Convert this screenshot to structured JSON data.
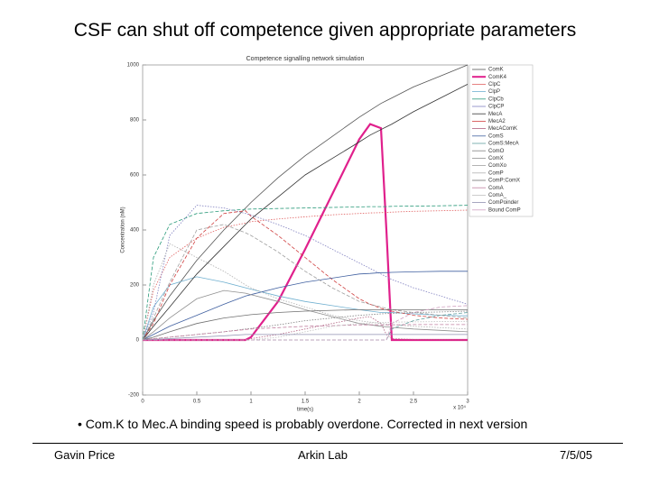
{
  "slide_title": "CSF can shut off competence given appropriate parameters",
  "bullet": "Com.K to Mec.A binding speed is probably overdone. Corrected in next version",
  "footer": {
    "left": "Gavin Price",
    "center": "Arkin Lab",
    "right": "7/5/05"
  },
  "chart_data": {
    "type": "line",
    "title": "Competence signalling network simulation",
    "xlabel": "time(s)",
    "ylabel": "Concentration (nM)",
    "x_multiplier": "x 10⁴",
    "x": [
      0,
      0.1,
      0.25,
      0.5,
      0.75,
      0.95,
      1,
      1.25,
      1.5,
      1.75,
      2,
      2.1,
      2.2,
      2.25,
      2.3,
      2.5,
      2.75,
      3
    ],
    "xlim": [
      0,
      3
    ],
    "xticks": [
      0,
      0.5,
      1,
      1.5,
      2,
      2.5,
      3
    ],
    "ylim": [
      -200,
      1000
    ],
    "yticks": [
      -200,
      0,
      200,
      400,
      600,
      800,
      1000
    ],
    "legend": "right",
    "series": [
      {
        "name": "ComK",
        "color": "#555555",
        "values": [
          0,
          70,
          160,
          290,
          400,
          480,
          500,
          590,
          670,
          740,
          810,
          835,
          860,
          870,
          880,
          920,
          960,
          1000
        ]
      },
      {
        "name": "ComK4",
        "color": "#e0208c",
        "values": [
          0,
          0,
          0,
          0,
          0,
          0,
          10,
          140,
          330,
          530,
          730,
          785,
          770,
          400,
          0,
          0,
          0,
          0
        ]
      },
      {
        "name": "ClpC",
        "color": "#e06060",
        "values": [
          0,
          180,
          300,
          370,
          410,
          425,
          430,
          440,
          448,
          455,
          460,
          462,
          463,
          464,
          465,
          468,
          470,
          472
        ]
      },
      {
        "name": "ClpP",
        "color": "#70b0d0",
        "values": [
          0,
          120,
          200,
          230,
          210,
          190,
          185,
          160,
          140,
          125,
          110,
          105,
          100,
          100,
          100,
          95,
          90,
          88
        ]
      },
      {
        "name": "ClpCb",
        "color": "#2a9a7a",
        "values": [
          0,
          300,
          420,
          460,
          470,
          475,
          476,
          478,
          480,
          482,
          484,
          485,
          485,
          485,
          486,
          487,
          488,
          490
        ]
      },
      {
        "name": "ClpCP",
        "color": "#8080c0",
        "values": [
          0,
          100,
          380,
          490,
          480,
          460,
          455,
          420,
          380,
          330,
          280,
          260,
          240,
          230,
          220,
          190,
          160,
          130
        ]
      },
      {
        "name": "MecA",
        "color": "#333333",
        "values": [
          0,
          50,
          120,
          240,
          340,
          420,
          440,
          520,
          600,
          660,
          720,
          745,
          765,
          775,
          785,
          830,
          880,
          930
        ]
      },
      {
        "name": "MecA2",
        "color": "#d04040",
        "values": [
          0,
          60,
          200,
          370,
          460,
          470,
          450,
          380,
          300,
          220,
          150,
          130,
          115,
          110,
          105,
          90,
          80,
          75
        ]
      },
      {
        "name": "MecAComK",
        "color": "#b06080",
        "values": [
          0,
          0,
          0,
          0,
          0,
          0,
          5,
          20,
          40,
          60,
          80,
          85,
          60,
          20,
          5,
          2,
          1,
          0
        ]
      },
      {
        "name": "ComS",
        "color": "#4060a0",
        "values": [
          0,
          20,
          50,
          90,
          130,
          160,
          165,
          190,
          210,
          225,
          240,
          242,
          245,
          245,
          246,
          248,
          250,
          250
        ]
      },
      {
        "name": "ComS:MecA",
        "color": "#60a0a0",
        "values": [
          0,
          0,
          0,
          0,
          0,
          0,
          0,
          0,
          0,
          0,
          0,
          0,
          0,
          0,
          40,
          70,
          90,
          100
        ]
      },
      {
        "name": "ComO",
        "color": "#808080",
        "values": [
          0,
          5,
          10,
          20,
          30,
          40,
          42,
          55,
          70,
          80,
          90,
          92,
          95,
          96,
          97,
          100,
          102,
          105
        ]
      },
      {
        "name": "ComX",
        "color": "#909090",
        "values": [
          0,
          30,
          80,
          150,
          180,
          170,
          165,
          140,
          110,
          85,
          60,
          55,
          50,
          48,
          46,
          40,
          35,
          30
        ]
      },
      {
        "name": "ComXo",
        "color": "#a0a0a0",
        "values": [
          0,
          80,
          210,
          400,
          420,
          390,
          380,
          320,
          250,
          190,
          140,
          130,
          120,
          115,
          110,
          100,
          90,
          80
        ]
      },
      {
        "name": "ComP",
        "color": "#b0b0b0",
        "values": [
          0,
          200,
          350,
          300,
          250,
          200,
          190,
          150,
          120,
          90,
          70,
          65,
          60,
          58,
          56,
          50,
          45,
          40
        ]
      },
      {
        "name": "ComP:ComX",
        "color": "#707070",
        "values": [
          0,
          10,
          30,
          60,
          80,
          90,
          92,
          100,
          105,
          108,
          110,
          110,
          110,
          110,
          110,
          110,
          110,
          110
        ]
      },
      {
        "name": "ComA",
        "color": "#c080a0",
        "values": [
          0,
          5,
          10,
          20,
          30,
          38,
          40,
          45,
          50,
          52,
          55,
          55,
          55,
          55,
          55,
          56,
          56,
          56
        ]
      },
      {
        "name": "ComA_",
        "color": "#c0c0c0",
        "values": [
          0,
          0,
          0,
          0,
          0,
          0,
          0,
          10,
          30,
          50,
          60,
          62,
          64,
          64,
          65,
          66,
          67,
          68
        ]
      },
      {
        "name": "ComPoinder",
        "color": "#9090b0",
        "values": [
          0,
          2,
          5,
          10,
          15,
          20,
          20,
          20,
          20,
          20,
          20,
          20,
          20,
          20,
          20,
          20,
          20,
          20
        ]
      },
      {
        "name": "Bound ComP",
        "color": "#d0a0c0",
        "values": [
          0,
          0,
          0,
          0,
          0,
          0,
          0,
          0,
          0,
          0,
          0,
          0,
          0,
          0,
          60,
          100,
          120,
          125
        ]
      }
    ]
  }
}
